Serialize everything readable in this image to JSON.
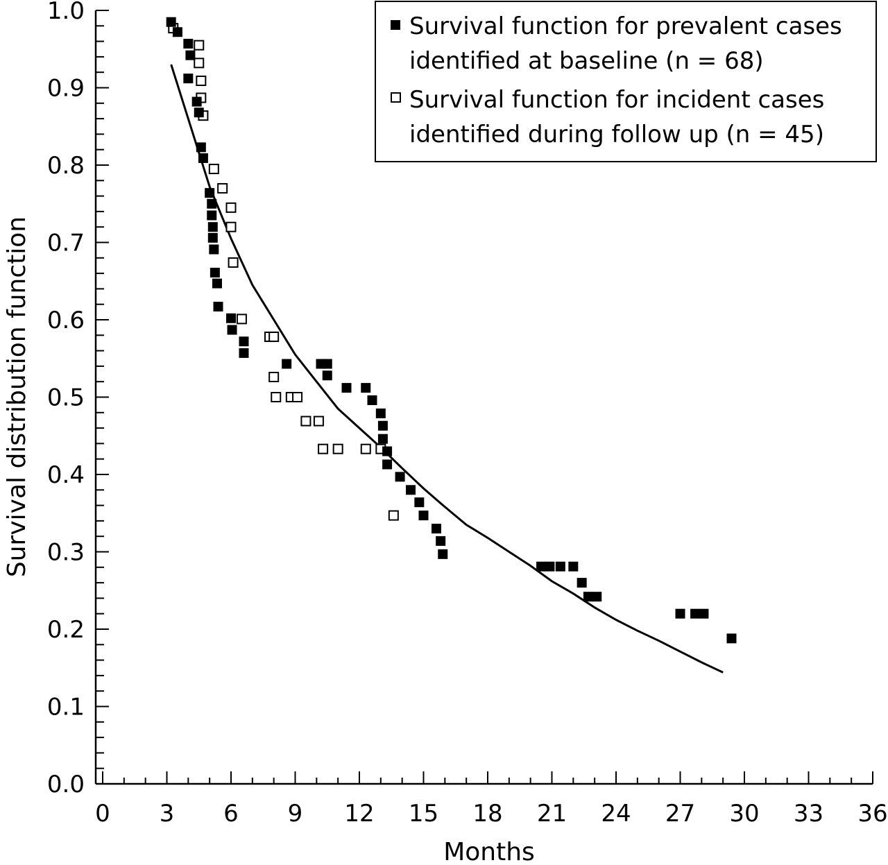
{
  "chart_data": {
    "type": "scatter",
    "title": "",
    "xlabel": "Months",
    "ylabel": "Survival distribution function",
    "xlim": [
      0,
      36
    ],
    "ylim": [
      0.0,
      1.0
    ],
    "x_ticks": [
      "0",
      "3",
      "6",
      "9",
      "12",
      "15",
      "18",
      "21",
      "24",
      "27",
      "30",
      "33",
      "36"
    ],
    "y_ticks": [
      "0.0",
      "0.1",
      "0.2",
      "0.3",
      "0.4",
      "0.5",
      "0.6",
      "0.7",
      "0.8",
      "0.9",
      "1.0"
    ],
    "grid": false,
    "legend_position": "top-right",
    "series": [
      {
        "name": "Survival function for prevalent cases identified at baseline (n = 68)",
        "marker": "filled-square",
        "color": "#000000",
        "points": [
          [
            3.2,
            0.985
          ],
          [
            3.5,
            0.972
          ],
          [
            4.0,
            0.957
          ],
          [
            4.1,
            0.942
          ],
          [
            4.0,
            0.912
          ],
          [
            4.4,
            0.882
          ],
          [
            4.5,
            0.868
          ],
          [
            4.6,
            0.823
          ],
          [
            4.7,
            0.809
          ],
          [
            5.0,
            0.764
          ],
          [
            5.1,
            0.75
          ],
          [
            5.1,
            0.735
          ],
          [
            5.15,
            0.72
          ],
          [
            5.15,
            0.706
          ],
          [
            5.2,
            0.691
          ],
          [
            5.25,
            0.661
          ],
          [
            5.35,
            0.647
          ],
          [
            5.4,
            0.617
          ],
          [
            6.0,
            0.602
          ],
          [
            6.05,
            0.587
          ],
          [
            6.6,
            0.572
          ],
          [
            6.6,
            0.557
          ],
          [
            8.6,
            0.543
          ],
          [
            10.2,
            0.543
          ],
          [
            10.5,
            0.543
          ],
          [
            10.5,
            0.528
          ],
          [
            11.4,
            0.512
          ],
          [
            12.3,
            0.512
          ],
          [
            12.6,
            0.496
          ],
          [
            13.0,
            0.479
          ],
          [
            13.1,
            0.463
          ],
          [
            13.1,
            0.446
          ],
          [
            13.3,
            0.43
          ],
          [
            13.3,
            0.413
          ],
          [
            13.9,
            0.397
          ],
          [
            14.4,
            0.38
          ],
          [
            14.8,
            0.364
          ],
          [
            15.0,
            0.347
          ],
          [
            15.6,
            0.33
          ],
          [
            15.8,
            0.314
          ],
          [
            15.9,
            0.297
          ],
          [
            20.5,
            0.281
          ],
          [
            20.9,
            0.281
          ],
          [
            21.4,
            0.281
          ],
          [
            22.0,
            0.281
          ],
          [
            22.4,
            0.26
          ],
          [
            22.7,
            0.242
          ],
          [
            23.1,
            0.242
          ],
          [
            27.0,
            0.22
          ],
          [
            27.7,
            0.22
          ],
          [
            28.1,
            0.22
          ],
          [
            29.4,
            0.188
          ]
        ]
      },
      {
        "name": "Survival function for incident cases identified during follow up (n = 45)",
        "marker": "open-square",
        "color": "#000000",
        "points": [
          [
            3.3,
            0.977
          ],
          [
            4.5,
            0.955
          ],
          [
            4.5,
            0.932
          ],
          [
            4.6,
            0.909
          ],
          [
            4.6,
            0.887
          ],
          [
            4.7,
            0.864
          ],
          [
            5.2,
            0.795
          ],
          [
            5.6,
            0.77
          ],
          [
            6.0,
            0.745
          ],
          [
            6.0,
            0.72
          ],
          [
            6.1,
            0.674
          ],
          [
            6.5,
            0.601
          ],
          [
            7.8,
            0.578
          ],
          [
            8.0,
            0.578
          ],
          [
            8.0,
            0.526
          ],
          [
            8.1,
            0.5
          ],
          [
            8.8,
            0.5
          ],
          [
            9.1,
            0.5
          ],
          [
            9.5,
            0.469
          ],
          [
            10.1,
            0.469
          ],
          [
            10.3,
            0.433
          ],
          [
            11.0,
            0.433
          ],
          [
            12.3,
            0.433
          ],
          [
            13.0,
            0.433
          ],
          [
            13.6,
            0.347
          ]
        ]
      },
      {
        "name": "",
        "marker": "line",
        "color": "#000000",
        "points": [
          [
            3.2,
            0.93
          ],
          [
            4.0,
            0.86
          ],
          [
            5.0,
            0.772
          ],
          [
            6.0,
            0.705
          ],
          [
            7.0,
            0.645
          ],
          [
            8.0,
            0.6
          ],
          [
            9.0,
            0.555
          ],
          [
            10.0,
            0.52
          ],
          [
            11.0,
            0.485
          ],
          [
            12.0,
            0.46
          ],
          [
            13.0,
            0.435
          ],
          [
            14.0,
            0.408
          ],
          [
            15.0,
            0.382
          ],
          [
            16.0,
            0.358
          ],
          [
            17.0,
            0.335
          ],
          [
            18.0,
            0.318
          ],
          [
            19.0,
            0.3
          ],
          [
            20.0,
            0.282
          ],
          [
            21.0,
            0.262
          ],
          [
            22.0,
            0.246
          ],
          [
            23.0,
            0.228
          ],
          [
            24.0,
            0.212
          ],
          [
            25.0,
            0.198
          ],
          [
            26.0,
            0.185
          ],
          [
            27.0,
            0.171
          ],
          [
            28.0,
            0.157
          ],
          [
            29.0,
            0.144
          ]
        ]
      }
    ]
  }
}
